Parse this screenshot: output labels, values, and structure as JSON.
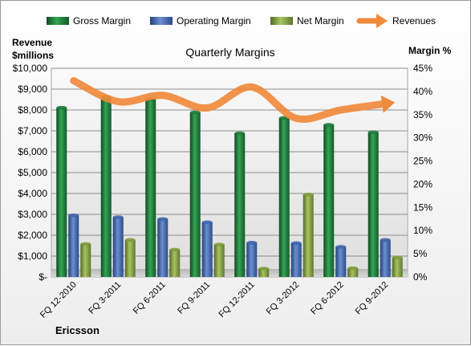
{
  "chart_data": {
    "type": "bar",
    "title": "Quarterly Margins",
    "company": "Ericsson",
    "ylabel_left_line1": "Revenue",
    "ylabel_left_line2": "$millions",
    "ylabel_right": "Margin %",
    "categories": [
      "FQ 12-2010",
      "FQ 3-2011",
      "FQ 6-2011",
      "FQ 9-2011",
      "FQ 12-2011",
      "FQ 3-2012",
      "FQ 6-2012",
      "FQ 9-2012"
    ],
    "left_axis": {
      "min": 0,
      "max": 10000,
      "ticks": [
        "$-",
        "$1,000",
        "$2,000",
        "$3,000",
        "$4,000",
        "$5,000",
        "$6,000",
        "$7,000",
        "$8,000",
        "$9,000",
        "$10,000"
      ]
    },
    "right_axis": {
      "min": 0,
      "max": 45,
      "ticks": [
        "0%",
        "5%",
        "10%",
        "15%",
        "20%",
        "25%",
        "30%",
        "35%",
        "40%",
        "45%"
      ]
    },
    "series": [
      {
        "name": "Gross Margin",
        "kind": "bar",
        "axis": "right",
        "color": "#1f7a3c",
        "values": [
          36.5,
          38.8,
          38.3,
          35.5,
          31.0,
          34.3,
          32.8,
          31.2
        ]
      },
      {
        "name": "Operating Margin",
        "kind": "bar",
        "axis": "right",
        "color": "#3f64ad",
        "values": [
          13.3,
          12.9,
          12.5,
          11.8,
          7.4,
          7.3,
          6.5,
          8.0
        ]
      },
      {
        "name": "Net Margin",
        "kind": "bar",
        "axis": "right",
        "color": "#7e9b3d",
        "values": [
          7.1,
          8.0,
          5.9,
          7.0,
          1.8,
          17.8,
          1.9,
          4.2
        ]
      },
      {
        "name": "Revenues",
        "kind": "line",
        "axis": "left",
        "color": "#f08a3c",
        "values": [
          9400,
          8400,
          8700,
          8100,
          9100,
          7600,
          8000,
          8300
        ]
      }
    ],
    "grid": true,
    "legend_position": "top"
  }
}
